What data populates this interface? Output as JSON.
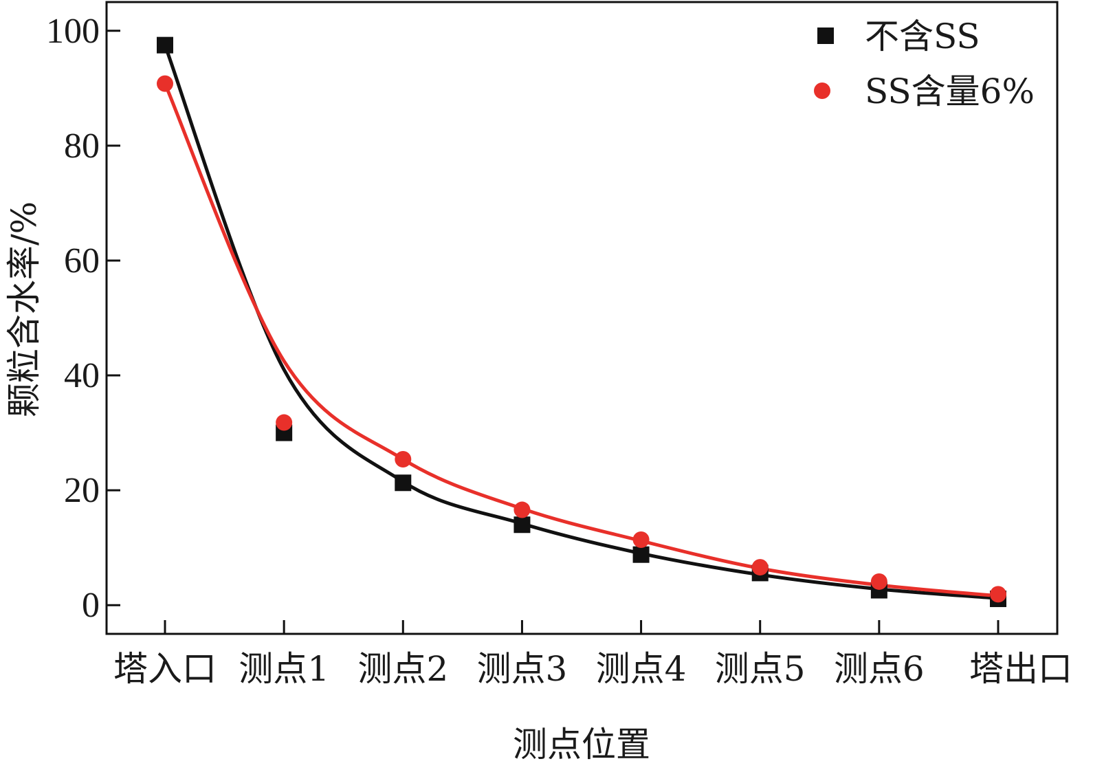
{
  "chart_data": {
    "type": "scatter",
    "categories": [
      "塔入口",
      "测点1",
      "测点2",
      "测点3",
      "测点4",
      "测点5",
      "测点6",
      "塔出口"
    ],
    "xlabel": "测点位置",
    "ylabel": "颗粒含水率/%",
    "ylim": [
      -5,
      105
    ],
    "yticks": [
      0,
      20,
      40,
      60,
      80,
      100
    ],
    "grid": false,
    "legend_position": "top-right",
    "series": [
      {
        "name": "不含SS",
        "marker": "square",
        "color": "#111111",
        "values": [
          97.5,
          30.0,
          21.3,
          14.0,
          8.8,
          5.6,
          2.6,
          1.1
        ],
        "fit_curve": [
          97.5,
          41.0,
          21.5,
          14.2,
          9.0,
          5.3,
          2.8,
          1.2
        ]
      },
      {
        "name": "SS含量6%",
        "marker": "circle",
        "color": "#e8302a",
        "values": [
          90.8,
          31.8,
          25.4,
          16.6,
          11.4,
          6.6,
          4.1,
          1.9
        ],
        "fit_curve": [
          90.8,
          42.5,
          25.4,
          16.8,
          11.2,
          6.4,
          3.5,
          1.6
        ]
      }
    ]
  }
}
